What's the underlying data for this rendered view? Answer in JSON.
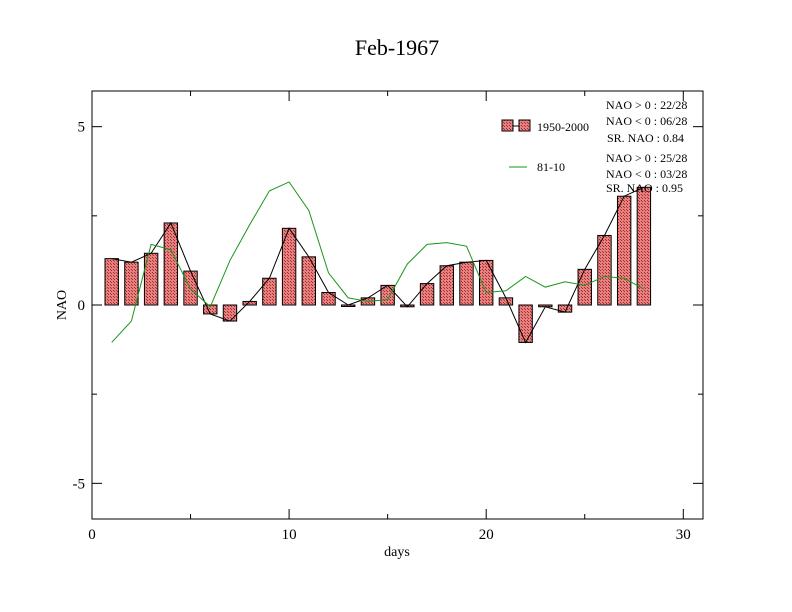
{
  "chart_data": {
    "type": "bar",
    "title": "Feb-1967",
    "xlabel": "days",
    "ylabel": "NAO",
    "xlim": [
      0,
      31
    ],
    "ylim": [
      -6,
      6
    ],
    "x_ticks": [
      0,
      10,
      20,
      30
    ],
    "y_ticks": [
      -5,
      0,
      5
    ],
    "x_tick_labels": [
      "0",
      "10",
      "20",
      "30"
    ],
    "y_tick_labels": [
      "-5",
      "0",
      "5"
    ],
    "grid": false,
    "legend_position": "top-right",
    "colors": {
      "bar_fill": "#e88080",
      "bar_hatch": "#a03030",
      "bar_edge": "#000000",
      "connector_line": "#000000",
      "green_line": "#1a961a"
    },
    "x": [
      1,
      2,
      3,
      4,
      5,
      6,
      7,
      8,
      9,
      10,
      11,
      12,
      13,
      14,
      15,
      16,
      17,
      18,
      19,
      20,
      21,
      22,
      23,
      24,
      25,
      26,
      27,
      28
    ],
    "series": [
      {
        "name": "1950-2000",
        "type": "bar",
        "values": [
          1.3,
          1.2,
          1.45,
          2.3,
          0.95,
          -0.25,
          -0.45,
          0.1,
          0.75,
          2.15,
          1.35,
          0.35,
          0.0,
          0.2,
          0.55,
          -0.05,
          0.6,
          1.1,
          1.2,
          1.25,
          0.2,
          -1.05,
          -0.05,
          -0.2,
          1.0,
          1.95,
          3.05,
          3.3
        ]
      },
      {
        "name": "81-10",
        "type": "line",
        "values": [
          -1.05,
          -0.45,
          1.7,
          1.55,
          0.45,
          -0.05,
          1.25,
          2.25,
          3.2,
          3.45,
          2.65,
          0.9,
          0.2,
          0.1,
          0.15,
          1.15,
          1.7,
          1.75,
          1.65,
          0.35,
          0.4,
          0.8,
          0.5,
          0.65,
          0.55,
          0.8,
          0.75,
          0.45
        ]
      }
    ],
    "annotations": {
      "stats_1950_2000": [
        "NAO > 0 : 22/28",
        "NAO < 0 : 06/28",
        "SR. NAO :  0.84"
      ],
      "stats_81_10": [
        "NAO > 0 : 25/28",
        "NAO < 0 : 03/28",
        "SR. NAO :  0.95"
      ]
    }
  }
}
